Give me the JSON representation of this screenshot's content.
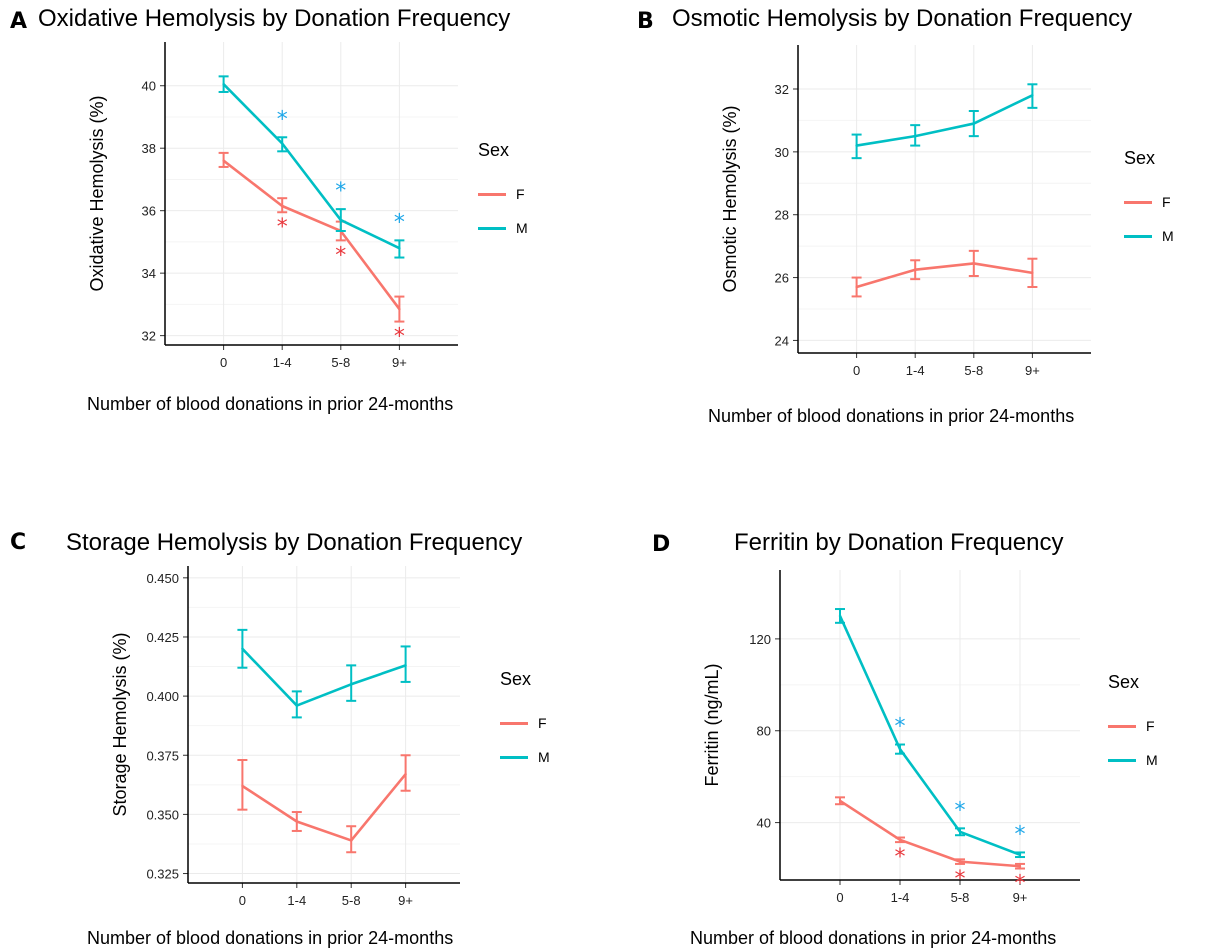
{
  "colors": {
    "F": "#F8766D",
    "M": "#00BFC4",
    "starF": "#E8383D",
    "starM": "#1FA7E8"
  },
  "legend": {
    "title": "Sex",
    "items": [
      "F",
      "M"
    ]
  },
  "chart_data": [
    {
      "panel": "A",
      "type": "line",
      "title": "Oxidative Hemolysis by Donation Frequency",
      "xlabel": "Number of blood donations in prior 24-months",
      "ylabel": "Oxidative Hemolysis (%)",
      "categories": [
        "0",
        "1-4",
        "5-8",
        "9+"
      ],
      "ylim": [
        31.7,
        41.4
      ],
      "yticks": [
        32,
        34,
        36,
        38,
        40
      ],
      "grid": true,
      "legend_position": "right",
      "series": [
        {
          "name": "F",
          "values": [
            37.6,
            36.15,
            35.35,
            32.85
          ],
          "err_low": [
            37.4,
            35.95,
            35.05,
            32.45
          ],
          "err_high": [
            37.85,
            36.4,
            35.65,
            33.25
          ],
          "sig": [
            false,
            true,
            true,
            true
          ]
        },
        {
          "name": "M",
          "values": [
            40.05,
            38.15,
            35.7,
            34.8
          ],
          "err_low": [
            39.8,
            37.9,
            35.35,
            34.5
          ],
          "err_high": [
            40.3,
            38.35,
            36.05,
            35.05
          ],
          "sig": [
            false,
            true,
            true,
            true
          ]
        }
      ]
    },
    {
      "panel": "B",
      "type": "line",
      "title": "Osmotic Hemolysis by Donation Frequency",
      "xlabel": "Number of blood donations in prior 24-months",
      "ylabel": "Osmotic Hemolysis (%)",
      "categories": [
        "0",
        "1-4",
        "5-8",
        "9+"
      ],
      "ylim": [
        23.6,
        33.4
      ],
      "yticks": [
        24,
        26,
        28,
        30,
        32
      ],
      "grid": true,
      "legend_position": "right",
      "series": [
        {
          "name": "F",
          "values": [
            25.7,
            26.25,
            26.45,
            26.15
          ],
          "err_low": [
            25.4,
            25.95,
            26.05,
            25.7
          ],
          "err_high": [
            26.0,
            26.55,
            26.85,
            26.6
          ],
          "sig": [
            false,
            false,
            false,
            false
          ]
        },
        {
          "name": "M",
          "values": [
            30.2,
            30.5,
            30.9,
            31.8
          ],
          "err_low": [
            29.8,
            30.2,
            30.5,
            31.4
          ],
          "err_high": [
            30.55,
            30.85,
            31.3,
            32.15
          ],
          "sig": [
            false,
            false,
            false,
            false
          ]
        }
      ]
    },
    {
      "panel": "C",
      "type": "line",
      "title": "Storage Hemolysis by Donation Frequency",
      "xlabel": "Number of blood donations in prior 24-months",
      "ylabel": "Storage Hemolysis (%)",
      "categories": [
        "0",
        "1-4",
        "5-8",
        "9+"
      ],
      "ylim": [
        0.321,
        0.455
      ],
      "yticks": [
        0.325,
        0.35,
        0.375,
        0.4,
        0.425,
        0.45
      ],
      "ytick_labels": [
        "0.325",
        "0.350",
        "0.375",
        "0.400",
        "0.425",
        "0.450"
      ],
      "grid": true,
      "legend_position": "right",
      "series": [
        {
          "name": "F",
          "values": [
            0.362,
            0.347,
            0.339,
            0.367
          ],
          "err_low": [
            0.352,
            0.343,
            0.334,
            0.36
          ],
          "err_high": [
            0.373,
            0.351,
            0.345,
            0.375
          ],
          "sig": [
            false,
            false,
            false,
            false
          ]
        },
        {
          "name": "M",
          "values": [
            0.42,
            0.396,
            0.405,
            0.413
          ],
          "err_low": [
            0.412,
            0.391,
            0.398,
            0.406
          ],
          "err_high": [
            0.428,
            0.402,
            0.413,
            0.421
          ],
          "sig": [
            false,
            false,
            false,
            false
          ]
        }
      ]
    },
    {
      "panel": "D",
      "type": "line",
      "title": "Ferritin by Donation Frequency",
      "xlabel": "Number of blood donations in prior 24-months",
      "ylabel": "Ferritin (ng/mL)",
      "categories": [
        "0",
        "1-4",
        "5-8",
        "9+"
      ],
      "ylim": [
        15,
        150
      ],
      "yticks": [
        40,
        80,
        120
      ],
      "grid": true,
      "legend_position": "right",
      "series": [
        {
          "name": "F",
          "values": [
            49.5,
            32.5,
            23,
            21
          ],
          "err_low": [
            48,
            31.5,
            22,
            20
          ],
          "err_high": [
            51,
            33.5,
            24,
            22
          ],
          "sig": [
            false,
            true,
            true,
            true
          ]
        },
        {
          "name": "M",
          "values": [
            130,
            72,
            36,
            26
          ],
          "err_low": [
            127,
            70,
            34.5,
            25
          ],
          "err_high": [
            133,
            74,
            37.5,
            27
          ],
          "sig": [
            false,
            true,
            true,
            true
          ]
        }
      ]
    }
  ]
}
